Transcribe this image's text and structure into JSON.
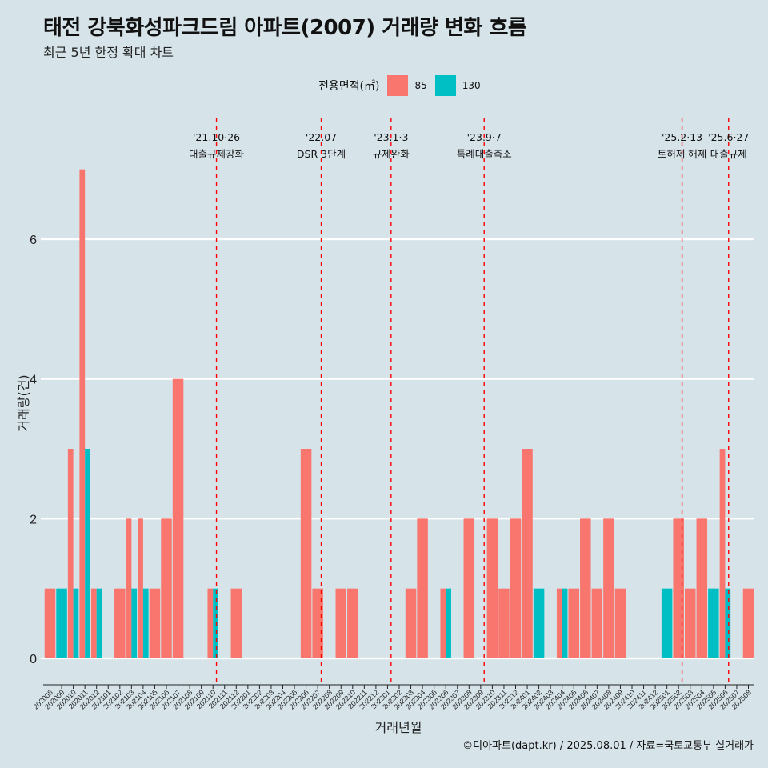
{
  "header": {
    "title": "태전 강북화성파크드림 아파트(2007) 거래량 변화 흐름",
    "subtitle": "최근 5년 한정 확대 차트"
  },
  "legend": {
    "title": "전용면적(㎡)",
    "items": [
      {
        "label": "85",
        "color": "#F8766D"
      },
      {
        "label": "130",
        "color": "#00BFC4"
      }
    ]
  },
  "caption": "©디아파트(dapt.kr) / 2025.08.01 / 자료=국토교통부 실거래가",
  "chart_data": {
    "type": "bar",
    "xlabel": "거래년월",
    "ylabel": "거래량(건)",
    "ylim": [
      0,
      7.4
    ],
    "yticks": [
      0,
      2,
      4,
      6
    ],
    "grid": true,
    "legend_position": "top",
    "categories": [
      "202008",
      "202009",
      "202010",
      "202011",
      "202012",
      "202101",
      "202102",
      "202103",
      "202104",
      "202105",
      "202106",
      "202107",
      "202108",
      "202109",
      "202110",
      "202111",
      "202112",
      "202201",
      "202202",
      "202203",
      "202204",
      "202205",
      "202206",
      "202207",
      "202208",
      "202209",
      "202210",
      "202211",
      "202212",
      "202301",
      "202302",
      "202303",
      "202304",
      "202305",
      "202306",
      "202307",
      "202308",
      "202309",
      "202310",
      "202311",
      "202312",
      "202401",
      "202402",
      "202403",
      "202404",
      "202405",
      "202406",
      "202407",
      "202408",
      "202409",
      "202410",
      "202411",
      "202412",
      "202501",
      "202502",
      "202503",
      "202504",
      "202505",
      "202506",
      "202507",
      "202508"
    ],
    "series": [
      {
        "name": "85",
        "color": "#F8766D",
        "values": [
          1,
          0,
          3,
          7,
          1,
          0,
          1,
          2,
          2,
          1,
          2,
          4,
          0,
          0,
          1,
          0,
          1,
          0,
          0,
          0,
          0,
          0,
          3,
          1,
          0,
          1,
          1,
          0,
          0,
          0,
          0,
          1,
          2,
          0,
          1,
          0,
          2,
          0,
          2,
          1,
          2,
          3,
          0,
          0,
          1,
          1,
          2,
          1,
          2,
          1,
          0,
          0,
          0,
          0,
          2,
          1,
          2,
          0,
          3,
          0,
          1
        ]
      },
      {
        "name": "130",
        "color": "#00BFC4",
        "values": [
          0,
          1,
          1,
          3,
          1,
          0,
          0,
          1,
          1,
          0,
          0,
          0,
          0,
          0,
          1,
          0,
          0,
          0,
          0,
          0,
          0,
          0,
          0,
          0,
          0,
          0,
          0,
          0,
          0,
          0,
          0,
          0,
          0,
          0,
          1,
          0,
          0,
          0,
          0,
          0,
          0,
          0,
          1,
          0,
          1,
          0,
          0,
          0,
          0,
          0,
          0,
          0,
          0,
          1,
          0,
          0,
          0,
          1,
          1,
          0,
          0
        ]
      }
    ],
    "events": [
      {
        "date": "'21.10·26",
        "label": "대출규제강화",
        "x_index": 14.3
      },
      {
        "date": "'22.07",
        "label": "DSR 3단계",
        "x_index": 23.3
      },
      {
        "date": "'23.1·3",
        "label": "규제완화",
        "x_index": 29.3
      },
      {
        "date": "'23.9·7",
        "label": "특례대출축소",
        "x_index": 37.3
      },
      {
        "date": "'25.2·13",
        "label": "토허제 해제",
        "x_index": 54.3
      },
      {
        "date": "'25.6·27",
        "label": "대출규제",
        "x_index": 58.3
      }
    ]
  }
}
